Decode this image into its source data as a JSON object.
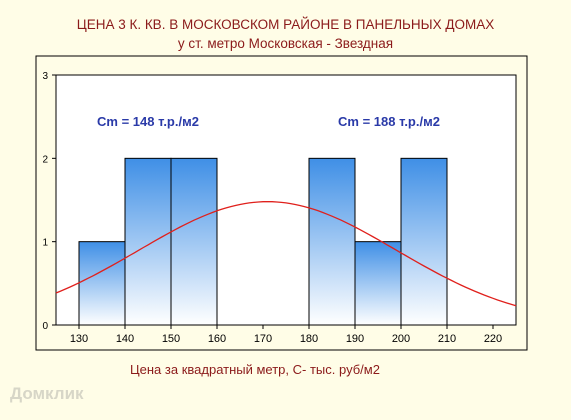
{
  "title": "ЦЕНА 3 К. КВ. В МОСКОВСКОМ РАЙОНЕ В ПАНЕЛЬНЫХ ДОМАХ",
  "subtitle": "у ст. метро Московская - Звездная",
  "xlabel": "Цена за квадратный метр, С- тыс. руб/м2",
  "watermark": "Домклик",
  "colors": {
    "title": "#8b1a1a",
    "annotation": "#2a3aa8",
    "curve": "#e0201c",
    "bar_top": "#3f8fe6",
    "bar_bottom": "#ffffff",
    "frame": "#000000"
  },
  "chart_data": {
    "type": "bar",
    "subtype": "histogram with fitted normal curve",
    "title": "ЦЕНА 3 К. КВ. В МОСКОВСКОМ РАЙОНЕ В ПАНЕЛЬНЫХ ДОМАХ",
    "subtitle": "у ст. метро Московская - Звездная",
    "xlabel": "Цена за квадратный метр, С- тыс. руб/м2",
    "ylabel": "",
    "xlim": [
      125,
      225
    ],
    "ylim": [
      0,
      3
    ],
    "xticks": [
      130,
      140,
      150,
      160,
      170,
      180,
      190,
      200,
      210,
      220
    ],
    "yticks": [
      0,
      1,
      2,
      3
    ],
    "grid": false,
    "bins": [
      {
        "from": 130,
        "to": 140,
        "count": 1
      },
      {
        "from": 140,
        "to": 150,
        "count": 2
      },
      {
        "from": 150,
        "to": 160,
        "count": 2
      },
      {
        "from": 180,
        "to": 190,
        "count": 2
      },
      {
        "from": 190,
        "to": 200,
        "count": 1
      },
      {
        "from": 200,
        "to": 210,
        "count": 2
      }
    ],
    "curve": {
      "distribution": "normal",
      "mean": 171,
      "sd": 28,
      "peak": 1.48
    },
    "annotations": [
      "Cm = 148 т.р./м2",
      "Cm = 188 т.р./м2"
    ]
  }
}
